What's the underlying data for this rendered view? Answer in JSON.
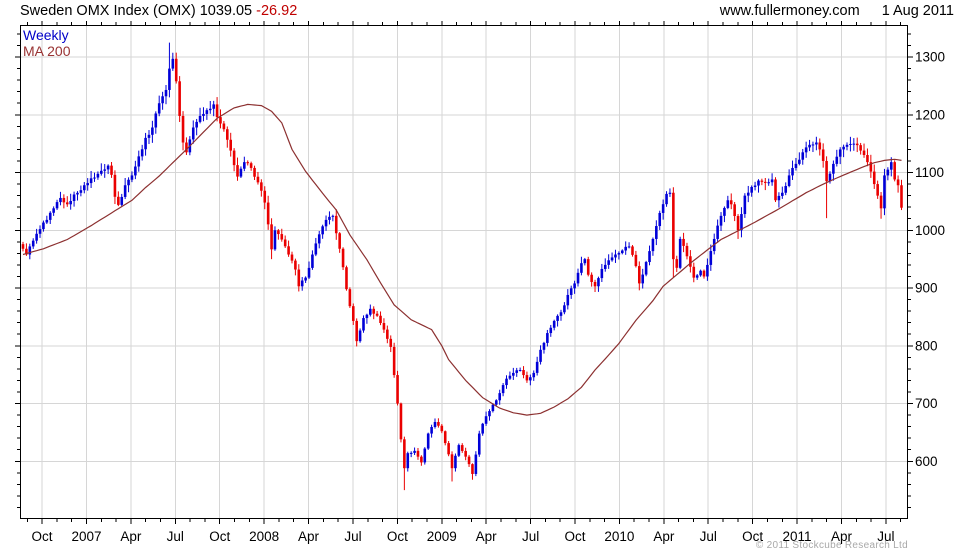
{
  "header": {
    "title": "Sweden OMX Index (OMX) 1039.05",
    "change": "-26.92",
    "site": "www.fullermoney.com",
    "date": "1 Aug 2011"
  },
  "legend": {
    "weekly_label": "Weekly",
    "ma_label": "MA 200"
  },
  "footer": {
    "copyright": "© 2011 Stockcube Research Ltd"
  },
  "colors": {
    "up_candle": "#0000d8",
    "down_candle": "#ea0000",
    "ma_line": "#8c3030",
    "grid": "#d6d6d6",
    "border": "#000000",
    "change_text": "#c00000",
    "legend_weekly": "#0000c8",
    "legend_ma": "#993333",
    "copyright_text": "#a8a8a8"
  },
  "chart_data": {
    "type": "candlestick",
    "title": "Sweden OMX Index (OMX)",
    "period": "Weekly",
    "overlay": "MA 200",
    "last_close": 1039.05,
    "change": -26.92,
    "as_of": "1 Aug 2011",
    "x_tick_labels": [
      "Oct",
      "2007",
      "Apr",
      "Jul",
      "Oct",
      "2008",
      "Apr",
      "Jul",
      "Oct",
      "2009",
      "Apr",
      "Jul",
      "Oct",
      "2010",
      "Apr",
      "Jul",
      "Oct",
      "2011",
      "Apr",
      "Jul"
    ],
    "y_ticks": [
      600,
      700,
      800,
      900,
      1000,
      1100,
      1200,
      1300
    ],
    "y_minor_step": 20,
    "ylim": [
      500,
      1355.5
    ],
    "weeks_total": 259,
    "first_tick_week": 5.6,
    "weeks_per_tick": 13.043,
    "grid": true,
    "legend_position": "top-left",
    "close_anchors": [
      [
        0,
        968
      ],
      [
        1,
        958
      ],
      [
        3,
        982
      ],
      [
        5,
        1002
      ],
      [
        7,
        1018
      ],
      [
        9,
        1038
      ],
      [
        11,
        1056
      ],
      [
        13,
        1045
      ],
      [
        15,
        1062
      ],
      [
        18,
        1078
      ],
      [
        20,
        1090
      ],
      [
        23,
        1103
      ],
      [
        25,
        1112
      ],
      [
        26,
        1096
      ],
      [
        27,
        1058
      ],
      [
        28,
        1044
      ],
      [
        30,
        1078
      ],
      [
        32,
        1095
      ],
      [
        34,
        1128
      ],
      [
        36,
        1160
      ],
      [
        38,
        1178
      ],
      [
        40,
        1220
      ],
      [
        42,
        1243
      ],
      [
        43,
        1280
      ],
      [
        44,
        1297
      ],
      [
        45,
        1258
      ],
      [
        46,
        1198
      ],
      [
        47,
        1152
      ],
      [
        48,
        1135
      ],
      [
        50,
        1178
      ],
      [
        52,
        1198
      ],
      [
        54,
        1208
      ],
      [
        56,
        1218
      ],
      [
        57,
        1196
      ],
      [
        59,
        1175
      ],
      [
        61,
        1138
      ],
      [
        63,
        1093
      ],
      [
        65,
        1118
      ],
      [
        67,
        1108
      ],
      [
        69,
        1083
      ],
      [
        71,
        1048
      ],
      [
        73,
        967
      ],
      [
        74,
        1000
      ],
      [
        76,
        984
      ],
      [
        78,
        958
      ],
      [
        80,
        932
      ],
      [
        81,
        903
      ],
      [
        83,
        918
      ],
      [
        85,
        958
      ],
      [
        87,
        993
      ],
      [
        89,
        1018
      ],
      [
        91,
        1025
      ],
      [
        93,
        968
      ],
      [
        95,
        898
      ],
      [
        97,
        843
      ],
      [
        98,
        808
      ],
      [
        100,
        848
      ],
      [
        102,
        864
      ],
      [
        104,
        852
      ],
      [
        106,
        828
      ],
      [
        108,
        798
      ],
      [
        110,
        700
      ],
      [
        111,
        638
      ],
      [
        112,
        588
      ],
      [
        113,
        614
      ],
      [
        115,
        618
      ],
      [
        117,
        598
      ],
      [
        119,
        648
      ],
      [
        121,
        668
      ],
      [
        123,
        652
      ],
      [
        125,
        612
      ],
      [
        126,
        588
      ],
      [
        128,
        628
      ],
      [
        130,
        608
      ],
      [
        132,
        578
      ],
      [
        134,
        648
      ],
      [
        136,
        678
      ],
      [
        138,
        698
      ],
      [
        140,
        718
      ],
      [
        142,
        743
      ],
      [
        144,
        753
      ],
      [
        146,
        758
      ],
      [
        148,
        740
      ],
      [
        150,
        753
      ],
      [
        152,
        793
      ],
      [
        154,
        822
      ],
      [
        156,
        843
      ],
      [
        158,
        858
      ],
      [
        160,
        888
      ],
      [
        162,
        908
      ],
      [
        164,
        943
      ],
      [
        165,
        950
      ],
      [
        166,
        923
      ],
      [
        168,
        903
      ],
      [
        170,
        933
      ],
      [
        172,
        948
      ],
      [
        174,
        958
      ],
      [
        176,
        965
      ],
      [
        178,
        972
      ],
      [
        180,
        938
      ],
      [
        181,
        908
      ],
      [
        183,
        945
      ],
      [
        185,
        985
      ],
      [
        187,
        1030
      ],
      [
        189,
        1063
      ],
      [
        190,
        1065
      ],
      [
        191,
        950
      ],
      [
        192,
        935
      ],
      [
        193,
        985
      ],
      [
        195,
        955
      ],
      [
        197,
        918
      ],
      [
        199,
        930
      ],
      [
        200,
        920
      ],
      [
        201,
        940
      ],
      [
        203,
        985
      ],
      [
        205,
        1025
      ],
      [
        207,
        1052
      ],
      [
        208,
        1045
      ],
      [
        210,
        1000
      ],
      [
        212,
        1060
      ],
      [
        214,
        1075
      ],
      [
        216,
        1086
      ],
      [
        218,
        1082
      ],
      [
        220,
        1088
      ],
      [
        221,
        1052
      ],
      [
        223,
        1065
      ],
      [
        225,
        1095
      ],
      [
        227,
        1115
      ],
      [
        229,
        1135
      ],
      [
        231,
        1148
      ],
      [
        233,
        1152
      ],
      [
        234,
        1140
      ],
      [
        235,
        1120
      ],
      [
        236,
        1085
      ],
      [
        237,
        1098
      ],
      [
        238,
        1115
      ],
      [
        240,
        1140
      ],
      [
        242,
        1148
      ],
      [
        244,
        1150
      ],
      [
        246,
        1138
      ],
      [
        248,
        1118
      ],
      [
        250,
        1080
      ],
      [
        251,
        1060
      ],
      [
        252,
        1038
      ],
      [
        253,
        1095
      ],
      [
        254,
        1105
      ],
      [
        255,
        1118
      ],
      [
        256,
        1088
      ],
      [
        257,
        1078
      ],
      [
        258,
        1039.05
      ]
    ],
    "ma200_anchors": [
      [
        0,
        958
      ],
      [
        6,
        968
      ],
      [
        13,
        984
      ],
      [
        20,
        1008
      ],
      [
        26,
        1030
      ],
      [
        32,
        1052
      ],
      [
        36,
        1074
      ],
      [
        40,
        1094
      ],
      [
        44,
        1117
      ],
      [
        48,
        1140
      ],
      [
        52,
        1164
      ],
      [
        57,
        1194
      ],
      [
        62,
        1212
      ],
      [
        66,
        1218
      ],
      [
        70,
        1216
      ],
      [
        73,
        1206
      ],
      [
        76,
        1186
      ],
      [
        79,
        1140
      ],
      [
        83,
        1102
      ],
      [
        88,
        1064
      ],
      [
        92,
        1035
      ],
      [
        96,
        992
      ],
      [
        101,
        949
      ],
      [
        105,
        909
      ],
      [
        109,
        871
      ],
      [
        114,
        845
      ],
      [
        120,
        828
      ],
      [
        123,
        800
      ],
      [
        125,
        776
      ],
      [
        130,
        740
      ],
      [
        135,
        710
      ],
      [
        140,
        692
      ],
      [
        144,
        684
      ],
      [
        148,
        680
      ],
      [
        152,
        683
      ],
      [
        156,
        694
      ],
      [
        160,
        708
      ],
      [
        164,
        728
      ],
      [
        168,
        758
      ],
      [
        172,
        784
      ],
      [
        175,
        804
      ],
      [
        180,
        844
      ],
      [
        185,
        878
      ],
      [
        188,
        903
      ],
      [
        192,
        923
      ],
      [
        196,
        943
      ],
      [
        201,
        966
      ],
      [
        205,
        984
      ],
      [
        210,
        999
      ],
      [
        214,
        1011
      ],
      [
        218,
        1024
      ],
      [
        222,
        1037
      ],
      [
        226,
        1051
      ],
      [
        230,
        1065
      ],
      [
        234,
        1077
      ],
      [
        238,
        1088
      ],
      [
        242,
        1098
      ],
      [
        246,
        1108
      ],
      [
        250,
        1117
      ],
      [
        253,
        1121
      ],
      [
        256,
        1123
      ],
      [
        258,
        1121
      ]
    ],
    "wick_overrides": {
      "43": {
        "high": 1325
      },
      "73": {
        "low": 950
      },
      "112": {
        "low": 550
      },
      "126": {
        "low": 565
      },
      "132": {
        "low": 568
      },
      "181": {
        "low": 896
      },
      "191": {
        "low": 918
      },
      "197": {
        "low": 910
      },
      "210": {
        "low": 985
      },
      "236": {
        "low": 1021
      },
      "252": {
        "low": 1020
      },
      "258": {
        "low": 1035
      }
    }
  }
}
